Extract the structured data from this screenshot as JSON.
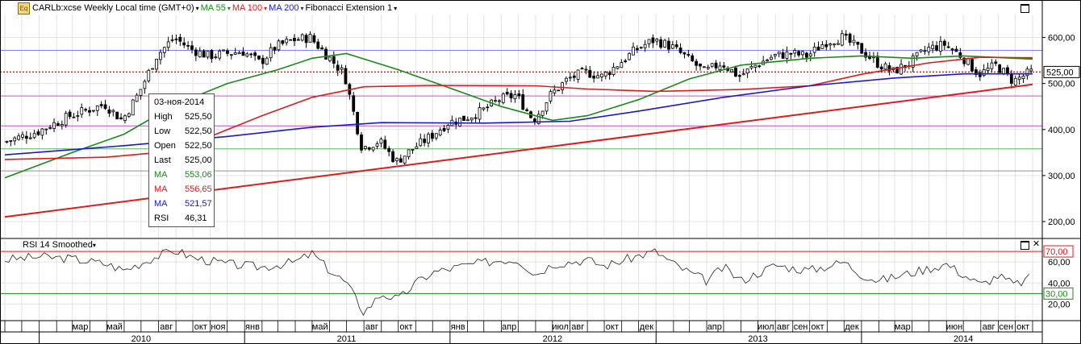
{
  "header": {
    "logo": "Eq",
    "instrument": "CARLb:xcse Weekly Local time (GMT+0)",
    "ma55_label": "MA 55",
    "ma100_label": "MA 100",
    "ma200_label": "MA 200",
    "fib_label": "Fibonacci Extension 1",
    "dropdown_glyph": "▾"
  },
  "subchart": {
    "title": "RSI 14 Smoothed",
    "dropdown_glyph": "▾"
  },
  "colors": {
    "candle": "#000000",
    "ma55": "#1a8a1a",
    "ma100": "#e01b1b",
    "ma200": "#1a1acc",
    "rsi": "#222222",
    "trend": "#e01b1b",
    "current_price": "#e01b1b",
    "fib_blue": "#8080ff",
    "fib_magenta": "#e040e0",
    "fib_green": "#60b060",
    "fib_gray": "#909090",
    "fib_magenta2": "#c050c0"
  },
  "tooltip": {
    "date": "03-ноя-2014",
    "rows": [
      {
        "label": "High",
        "value": "525,50",
        "color": "#000000"
      },
      {
        "label": "Low",
        "value": "522,50",
        "color": "#000000"
      },
      {
        "label": "Open",
        "value": "522,50",
        "color": "#000000"
      },
      {
        "label": "Last",
        "value": "525,00",
        "color": "#000000"
      },
      {
        "label": "MA",
        "value": "553,06",
        "color": "#1a8a1a"
      },
      {
        "label": "MA",
        "value": "556,65",
        "color": "#e01b1b"
      },
      {
        "label": "MA",
        "value": "521,57",
        "color": "#1a1acc"
      },
      {
        "label": "RSI",
        "value": "46,31",
        "color": "#000000"
      }
    ]
  },
  "chart_data": [
    {
      "type": "candlestick",
      "title": "CARLb:xcse Weekly Local time (GMT+0)",
      "ylim": [
        165,
        650
      ],
      "yticks": [
        200,
        300,
        400,
        500,
        600
      ],
      "ytick_labels": [
        "200,00",
        "300,00",
        "400,00",
        "500,00",
        "600,00"
      ],
      "current_price": 525,
      "current_price_label": "525,00",
      "x_range": [
        "2009-11",
        "2014-11"
      ],
      "month_labels": [
        {
          "label": "мар",
          "date": "2010-03"
        },
        {
          "label": "май",
          "date": "2010-05"
        },
        {
          "label": "авг",
          "date": "2010-08"
        },
        {
          "label": "окт",
          "date": "2010-10"
        },
        {
          "label": "ноя",
          "date": "2010-11"
        },
        {
          "label": "янв",
          "date": "2011-01"
        },
        {
          "label": "май",
          "date": "2011-05"
        },
        {
          "label": "авг",
          "date": "2011-08"
        },
        {
          "label": "окт",
          "date": "2011-10"
        },
        {
          "label": "янв",
          "date": "2012-01"
        },
        {
          "label": "апр",
          "date": "2012-04"
        },
        {
          "label": "июл",
          "date": "2012-07"
        },
        {
          "label": "авг",
          "date": "2012-08"
        },
        {
          "label": "окт",
          "date": "2012-10"
        },
        {
          "label": "дек",
          "date": "2012-12"
        },
        {
          "label": "апр",
          "date": "2013-04"
        },
        {
          "label": "июл",
          "date": "2013-07"
        },
        {
          "label": "авг",
          "date": "2013-08"
        },
        {
          "label": "сен",
          "date": "2013-09"
        },
        {
          "label": "окт",
          "date": "2013-10"
        },
        {
          "label": "дек",
          "date": "2013-12"
        },
        {
          "label": "мар",
          "date": "2014-03"
        },
        {
          "label": "июн",
          "date": "2014-06"
        },
        {
          "label": "авг",
          "date": "2014-08"
        },
        {
          "label": "сен",
          "date": "2014-09"
        },
        {
          "label": "окт",
          "date": "2014-10"
        }
      ],
      "year_labels": [
        {
          "label": "2010",
          "date": "2010-01"
        },
        {
          "label": "2011",
          "date": "2011-01"
        },
        {
          "label": "2012",
          "date": "2012-01"
        },
        {
          "label": "2013",
          "date": "2013-01"
        },
        {
          "label": "2014",
          "date": "2014-01"
        }
      ],
      "price_path": [
        [
          "2009-11",
          372
        ],
        [
          "2010-01",
          395
        ],
        [
          "2010-03",
          430
        ],
        [
          "2010-05",
          455
        ],
        [
          "2010-06",
          420
        ],
        [
          "2010-07",
          480
        ],
        [
          "2010-08",
          560
        ],
        [
          "2010-09",
          600
        ],
        [
          "2010-10",
          575
        ],
        [
          "2010-11",
          560
        ],
        [
          "2011-01",
          570
        ],
        [
          "2011-02",
          545
        ],
        [
          "2011-03",
          580
        ],
        [
          "2011-04",
          595
        ],
        [
          "2011-05",
          600
        ],
        [
          "2011-06",
          560
        ],
        [
          "2011-07",
          520
        ],
        [
          "2011-08",
          360
        ],
        [
          "2011-09",
          375
        ],
        [
          "2011-10",
          330
        ],
        [
          "2011-11",
          360
        ],
        [
          "2011-12",
          385
        ],
        [
          "2012-01",
          415
        ],
        [
          "2012-02",
          425
        ],
        [
          "2012-03",
          440
        ],
        [
          "2012-04",
          465
        ],
        [
          "2012-05",
          475
        ],
        [
          "2012-06",
          420
        ],
        [
          "2012-07",
          475
        ],
        [
          "2012-08",
          510
        ],
        [
          "2012-09",
          525
        ],
        [
          "2012-10",
          515
        ],
        [
          "2012-11",
          545
        ],
        [
          "2012-12",
          575
        ],
        [
          "2013-01",
          595
        ],
        [
          "2013-02",
          580
        ],
        [
          "2013-03",
          555
        ],
        [
          "2013-04",
          525
        ],
        [
          "2013-05",
          545
        ],
        [
          "2013-06",
          515
        ],
        [
          "2013-07",
          540
        ],
        [
          "2013-08",
          560
        ],
        [
          "2013-09",
          565
        ],
        [
          "2013-10",
          560
        ],
        [
          "2013-11",
          590
        ],
        [
          "2013-12",
          600
        ],
        [
          "2014-01",
          575
        ],
        [
          "2014-02",
          545
        ],
        [
          "2014-03",
          525
        ],
        [
          "2014-04",
          545
        ],
        [
          "2014-05",
          575
        ],
        [
          "2014-06",
          585
        ],
        [
          "2014-07",
          560
        ],
        [
          "2014-08",
          520
        ],
        [
          "2014-09",
          540
        ],
        [
          "2014-10",
          505
        ],
        [
          "2014-11",
          525
        ]
      ],
      "series": [
        {
          "name": "MA 55",
          "key": "ma55",
          "points": [
            [
              "2009-11",
              295
            ],
            [
              "2010-03",
              350
            ],
            [
              "2010-06",
              390
            ],
            [
              "2010-09",
              455
            ],
            [
              "2010-12",
              500
            ],
            [
              "2011-03",
              530
            ],
            [
              "2011-05",
              555
            ],
            [
              "2011-07",
              565
            ],
            [
              "2011-10",
              530
            ],
            [
              "2012-01",
              490
            ],
            [
              "2012-04",
              450
            ],
            [
              "2012-07",
              420
            ],
            [
              "2012-09",
              430
            ],
            [
              "2012-12",
              465
            ],
            [
              "2013-03",
              510
            ],
            [
              "2013-06",
              540
            ],
            [
              "2013-10",
              555
            ],
            [
              "2014-01",
              560
            ],
            [
              "2014-04",
              555
            ],
            [
              "2014-07",
              560
            ],
            [
              "2014-11",
              553
            ]
          ]
        },
        {
          "name": "MA 100",
          "key": "ma100",
          "points": [
            [
              "2009-11",
              335
            ],
            [
              "2010-05",
              340
            ],
            [
              "2010-08",
              350
            ],
            [
              "2010-11",
              385
            ],
            [
              "2011-02",
              430
            ],
            [
              "2011-05",
              470
            ],
            [
              "2011-08",
              493
            ],
            [
              "2011-12",
              496
            ],
            [
              "2012-06",
              495
            ],
            [
              "2012-09",
              488
            ],
            [
              "2013-01",
              483
            ],
            [
              "2013-06",
              487
            ],
            [
              "2013-10",
              495
            ],
            [
              "2014-01",
              520
            ],
            [
              "2014-05",
              545
            ],
            [
              "2014-08",
              557
            ],
            [
              "2014-11",
              556
            ]
          ]
        },
        {
          "name": "MA 200",
          "key": "ma200",
          "points": [
            [
              "2009-11",
              345
            ],
            [
              "2010-06",
              365
            ],
            [
              "2010-12",
              385
            ],
            [
              "2011-05",
              405
            ],
            [
              "2011-09",
              415
            ],
            [
              "2012-03",
              414
            ],
            [
              "2012-08",
              418
            ],
            [
              "2012-12",
              440
            ],
            [
              "2013-05",
              470
            ],
            [
              "2013-10",
              495
            ],
            [
              "2014-03",
              512
            ],
            [
              "2014-07",
              521
            ],
            [
              "2014-11",
              521
            ]
          ]
        },
        {
          "name": "Trendline",
          "key": "trend",
          "points": [
            [
              "2009-11",
              210
            ],
            [
              "2014-11",
              498
            ]
          ]
        }
      ],
      "horizontal_lines": [
        {
          "value": 572,
          "key": "fib_blue"
        },
        {
          "value": 473,
          "key": "fib_magenta"
        },
        {
          "value": 408,
          "key": "fib_magenta2"
        },
        {
          "value": 358,
          "key": "fib_green"
        },
        {
          "value": 310,
          "key": "fib_gray"
        }
      ]
    },
    {
      "type": "line",
      "title": "RSI 14 Smoothed",
      "ylim": [
        5,
        80
      ],
      "yticks": [
        20,
        40,
        60
      ],
      "ytick_labels": [
        "20,00",
        "40,00",
        "60,00"
      ],
      "levels": [
        {
          "value": 70,
          "label": "70,00",
          "key": "ma100"
        },
        {
          "value": 30,
          "label": "30,00",
          "key": "ma55"
        }
      ],
      "points": [
        [
          "2009-11",
          62
        ],
        [
          "2010-01",
          65
        ],
        [
          "2010-03",
          63
        ],
        [
          "2010-05",
          58
        ],
        [
          "2010-06",
          52
        ],
        [
          "2010-08",
          66
        ],
        [
          "2010-09",
          71
        ],
        [
          "2010-10",
          64
        ],
        [
          "2010-12",
          58
        ],
        [
          "2011-02",
          55
        ],
        [
          "2011-04",
          60
        ],
        [
          "2011-05",
          68
        ],
        [
          "2011-06",
          52
        ],
        [
          "2011-07",
          40
        ],
        [
          "2011-08",
          12
        ],
        [
          "2011-09",
          30
        ],
        [
          "2011-10",
          24
        ],
        [
          "2011-11",
          40
        ],
        [
          "2011-12",
          50
        ],
        [
          "2012-02",
          57
        ],
        [
          "2012-04",
          62
        ],
        [
          "2012-05",
          62
        ],
        [
          "2012-06",
          48
        ],
        [
          "2012-07",
          58
        ],
        [
          "2012-09",
          62
        ],
        [
          "2012-10",
          56
        ],
        [
          "2012-12",
          66
        ],
        [
          "2013-01",
          70
        ],
        [
          "2013-02",
          58
        ],
        [
          "2013-03",
          50
        ],
        [
          "2013-04",
          42
        ],
        [
          "2013-05",
          55
        ],
        [
          "2013-06",
          42
        ],
        [
          "2013-08",
          57
        ],
        [
          "2013-09",
          54
        ],
        [
          "2013-10",
          52
        ],
        [
          "2013-12",
          60
        ],
        [
          "2014-01",
          48
        ],
        [
          "2014-02",
          42
        ],
        [
          "2014-04",
          50
        ],
        [
          "2014-06",
          58
        ],
        [
          "2014-07",
          48
        ],
        [
          "2014-08",
          38
        ],
        [
          "2014-09",
          47
        ],
        [
          "2014-10",
          38
        ],
        [
          "2014-11",
          46
        ]
      ]
    }
  ]
}
